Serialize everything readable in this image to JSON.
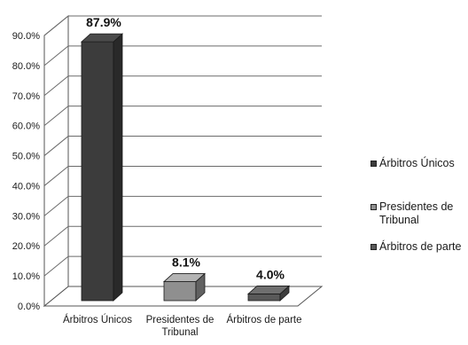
{
  "chart_data": {
    "type": "bar",
    "title": "",
    "xlabel": "",
    "ylabel": "",
    "categories": [
      "Árbitros Únicos",
      "Presidentes de Tribunal",
      "Árbitros de parte"
    ],
    "values": [
      87.9,
      8.1,
      4.0
    ],
    "data_labels": [
      "87.9%",
      "8.1%",
      "4.0%"
    ],
    "ylim": [
      0,
      90
    ],
    "y_ticks": [
      "0.0%",
      "10.0%",
      "20.0%",
      "30.0%",
      "40.0%",
      "50.0%",
      "60.0%",
      "70.0%",
      "80.0%",
      "90.0%"
    ],
    "grid": true,
    "style": "3d",
    "legend_position": "right",
    "colors": [
      "#3c3c3c",
      "#8f8f8f",
      "#595959"
    ]
  },
  "legend": {
    "items": [
      {
        "label": "Árbitros Únicos",
        "color": "#3c3c3c"
      },
      {
        "label": "Presidentes de Tribunal",
        "color": "#8f8f8f"
      },
      {
        "label": "Árbitros de parte",
        "color": "#595959"
      }
    ]
  }
}
